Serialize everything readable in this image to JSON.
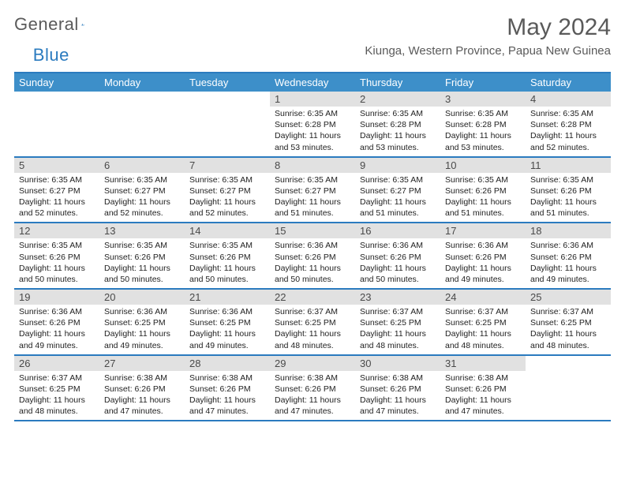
{
  "logo": {
    "text1": "General",
    "text2": "Blue"
  },
  "title": "May 2024",
  "location": "Kiunga, Western Province, Papua New Guinea",
  "colors": {
    "header_bg": "#3d8fc9",
    "header_text": "#ffffff",
    "border": "#2b7bbf",
    "daynum_bg": "#e1e1e1",
    "text_muted": "#5a5a5a"
  },
  "day_names": [
    "Sunday",
    "Monday",
    "Tuesday",
    "Wednesday",
    "Thursday",
    "Friday",
    "Saturday"
  ],
  "weeks": [
    [
      {
        "n": "",
        "sr": "",
        "ss": "",
        "dl": ""
      },
      {
        "n": "",
        "sr": "",
        "ss": "",
        "dl": ""
      },
      {
        "n": "",
        "sr": "",
        "ss": "",
        "dl": ""
      },
      {
        "n": "1",
        "sr": "6:35 AM",
        "ss": "6:28 PM",
        "dl": "11 hours and 53 minutes."
      },
      {
        "n": "2",
        "sr": "6:35 AM",
        "ss": "6:28 PM",
        "dl": "11 hours and 53 minutes."
      },
      {
        "n": "3",
        "sr": "6:35 AM",
        "ss": "6:28 PM",
        "dl": "11 hours and 53 minutes."
      },
      {
        "n": "4",
        "sr": "6:35 AM",
        "ss": "6:28 PM",
        "dl": "11 hours and 52 minutes."
      }
    ],
    [
      {
        "n": "5",
        "sr": "6:35 AM",
        "ss": "6:27 PM",
        "dl": "11 hours and 52 minutes."
      },
      {
        "n": "6",
        "sr": "6:35 AM",
        "ss": "6:27 PM",
        "dl": "11 hours and 52 minutes."
      },
      {
        "n": "7",
        "sr": "6:35 AM",
        "ss": "6:27 PM",
        "dl": "11 hours and 52 minutes."
      },
      {
        "n": "8",
        "sr": "6:35 AM",
        "ss": "6:27 PM",
        "dl": "11 hours and 51 minutes."
      },
      {
        "n": "9",
        "sr": "6:35 AM",
        "ss": "6:27 PM",
        "dl": "11 hours and 51 minutes."
      },
      {
        "n": "10",
        "sr": "6:35 AM",
        "ss": "6:26 PM",
        "dl": "11 hours and 51 minutes."
      },
      {
        "n": "11",
        "sr": "6:35 AM",
        "ss": "6:26 PM",
        "dl": "11 hours and 51 minutes."
      }
    ],
    [
      {
        "n": "12",
        "sr": "6:35 AM",
        "ss": "6:26 PM",
        "dl": "11 hours and 50 minutes."
      },
      {
        "n": "13",
        "sr": "6:35 AM",
        "ss": "6:26 PM",
        "dl": "11 hours and 50 minutes."
      },
      {
        "n": "14",
        "sr": "6:35 AM",
        "ss": "6:26 PM",
        "dl": "11 hours and 50 minutes."
      },
      {
        "n": "15",
        "sr": "6:36 AM",
        "ss": "6:26 PM",
        "dl": "11 hours and 50 minutes."
      },
      {
        "n": "16",
        "sr": "6:36 AM",
        "ss": "6:26 PM",
        "dl": "11 hours and 50 minutes."
      },
      {
        "n": "17",
        "sr": "6:36 AM",
        "ss": "6:26 PM",
        "dl": "11 hours and 49 minutes."
      },
      {
        "n": "18",
        "sr": "6:36 AM",
        "ss": "6:26 PM",
        "dl": "11 hours and 49 minutes."
      }
    ],
    [
      {
        "n": "19",
        "sr": "6:36 AM",
        "ss": "6:26 PM",
        "dl": "11 hours and 49 minutes."
      },
      {
        "n": "20",
        "sr": "6:36 AM",
        "ss": "6:25 PM",
        "dl": "11 hours and 49 minutes."
      },
      {
        "n": "21",
        "sr": "6:36 AM",
        "ss": "6:25 PM",
        "dl": "11 hours and 49 minutes."
      },
      {
        "n": "22",
        "sr": "6:37 AM",
        "ss": "6:25 PM",
        "dl": "11 hours and 48 minutes."
      },
      {
        "n": "23",
        "sr": "6:37 AM",
        "ss": "6:25 PM",
        "dl": "11 hours and 48 minutes."
      },
      {
        "n": "24",
        "sr": "6:37 AM",
        "ss": "6:25 PM",
        "dl": "11 hours and 48 minutes."
      },
      {
        "n": "25",
        "sr": "6:37 AM",
        "ss": "6:25 PM",
        "dl": "11 hours and 48 minutes."
      }
    ],
    [
      {
        "n": "26",
        "sr": "6:37 AM",
        "ss": "6:25 PM",
        "dl": "11 hours and 48 minutes."
      },
      {
        "n": "27",
        "sr": "6:38 AM",
        "ss": "6:26 PM",
        "dl": "11 hours and 47 minutes."
      },
      {
        "n": "28",
        "sr": "6:38 AM",
        "ss": "6:26 PM",
        "dl": "11 hours and 47 minutes."
      },
      {
        "n": "29",
        "sr": "6:38 AM",
        "ss": "6:26 PM",
        "dl": "11 hours and 47 minutes."
      },
      {
        "n": "30",
        "sr": "6:38 AM",
        "ss": "6:26 PM",
        "dl": "11 hours and 47 minutes."
      },
      {
        "n": "31",
        "sr": "6:38 AM",
        "ss": "6:26 PM",
        "dl": "11 hours and 47 minutes."
      },
      {
        "n": "",
        "sr": "",
        "ss": "",
        "dl": ""
      }
    ]
  ],
  "labels": {
    "sunrise": "Sunrise:",
    "sunset": "Sunset:",
    "daylight": "Daylight:"
  }
}
